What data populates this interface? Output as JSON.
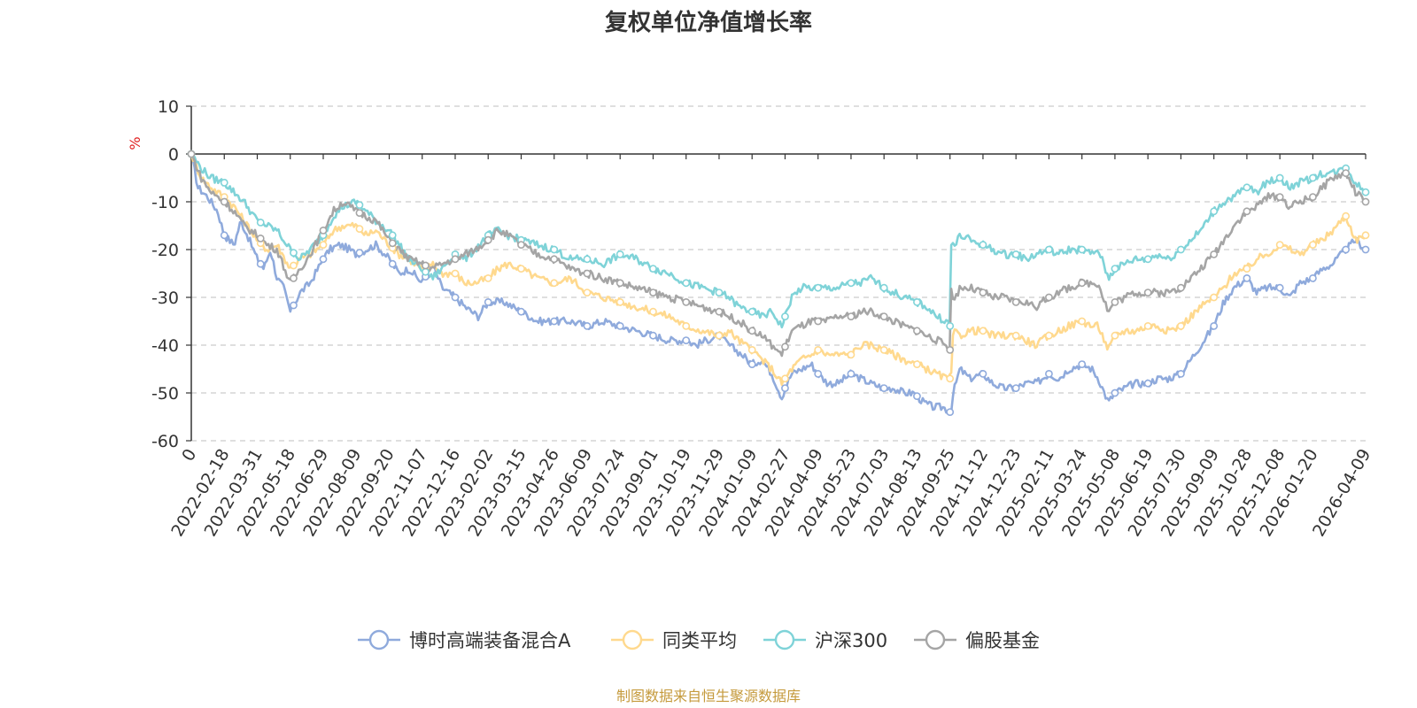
{
  "chart_data": {
    "type": "line",
    "title": "复权单位净值增长率",
    "ylabel": "%",
    "ylim": [
      -60,
      10
    ],
    "yticks": [
      10,
      0,
      -10,
      -20,
      -30,
      -40,
      -50,
      -60
    ],
    "grid": true,
    "legend_position": "bottom",
    "x_tick_labels": [
      "0",
      "2022-02-18",
      "2022-03-31",
      "2022-05-18",
      "2022-06-29",
      "2022-08-09",
      "2022-09-20",
      "2022-11-07",
      "2022-12-16",
      "2023-02-02",
      "2023-03-15",
      "2023-04-26",
      "2023-06-09",
      "2023-07-24",
      "2023-09-01",
      "2023-10-19",
      "2023-11-29",
      "2024-01-09",
      "2024-02-27",
      "2024-04-09",
      "2024-05-23",
      "2024-07-03",
      "2024-08-13",
      "2024-09-25",
      "2024-11-12",
      "2024-12-23",
      "2025-02-11",
      "2025-03-24",
      "2025-05-08",
      "2025-06-19",
      "2025-07-30",
      "2025-09-09",
      "2025-10-28",
      "2025-12-08",
      "2026-01-20",
      "2026-04-09"
    ],
    "x_tick_positions": [
      0,
      1,
      2,
      3,
      4,
      5,
      6,
      7,
      8,
      9,
      10,
      11,
      12,
      13,
      14,
      15,
      16,
      17,
      18,
      19,
      20,
      21,
      22,
      23,
      24,
      25,
      26,
      27,
      28,
      29,
      30,
      31,
      32,
      33,
      34,
      35.6
    ],
    "x_max": 35.6,
    "series": [
      {
        "name": "博时高端装备混合A",
        "color": "#8FAADC",
        "x": [
          0,
          0.2,
          0.5,
          0.8,
          1.0,
          1.3,
          1.5,
          1.7,
          2.0,
          2.2,
          2.4,
          2.6,
          2.8,
          3.0,
          3.3,
          3.6,
          4.0,
          4.2,
          4.5,
          4.8,
          5.0,
          5.3,
          5.6,
          6.0,
          6.3,
          6.6,
          7.0,
          7.3,
          7.6,
          8.0,
          8.3,
          8.5,
          8.7,
          9.0,
          9.5,
          10.0,
          10.5,
          11.0,
          11.5,
          12.0,
          12.5,
          13.0,
          13.5,
          14.0,
          14.5,
          15.0,
          15.3,
          15.6,
          16.0,
          16.3,
          16.7,
          17.0,
          17.3,
          17.6,
          17.9,
          18.0,
          18.2,
          18.5,
          18.8,
          19.0,
          19.3,
          19.6,
          20.0,
          20.3,
          20.6,
          21.0,
          21.3,
          21.6,
          21.9,
          22.2,
          22.5,
          22.8,
          23.0,
          23.05,
          23.1,
          23.3,
          23.6,
          24.0,
          24.3,
          24.6,
          25.0,
          25.3,
          25.6,
          26.0,
          26.3,
          26.6,
          27.0,
          27.3,
          27.5,
          27.8,
          28.0,
          28.3,
          28.6,
          29.0,
          29.3,
          29.6,
          30.0,
          30.3,
          30.6,
          31.0,
          31.3,
          31.6,
          32.0,
          32.3,
          32.6,
          33.0,
          33.3,
          33.6,
          34.0,
          34.3,
          34.6,
          35.0,
          35.3,
          35.6
        ],
        "values": [
          0,
          -7,
          -9,
          -12,
          -17,
          -19,
          -14,
          -17,
          -22,
          -24,
          -20,
          -26,
          -28,
          -33,
          -29,
          -27,
          -22,
          -20,
          -19,
          -20,
          -21,
          -20,
          -19,
          -22,
          -25,
          -24,
          -27,
          -23,
          -28,
          -30,
          -32,
          -33,
          -34,
          -31,
          -31,
          -33,
          -35,
          -35,
          -35,
          -36,
          -35,
          -36,
          -37,
          -38,
          -39,
          -39,
          -40,
          -39,
          -38,
          -40,
          -42,
          -44,
          -43,
          -46,
          -51,
          -49,
          -46,
          -45,
          -44,
          -46,
          -48,
          -48,
          -46,
          -47,
          -48,
          -49,
          -49,
          -50,
          -50,
          -52,
          -53,
          -53,
          -54,
          -53,
          -50,
          -45,
          -47,
          -46,
          -48,
          -49,
          -49,
          -48,
          -48,
          -46,
          -47,
          -45,
          -44,
          -45,
          -47,
          -52,
          -50,
          -49,
          -48,
          -48,
          -47,
          -47,
          -46,
          -43,
          -40,
          -36,
          -31,
          -28,
          -26,
          -29,
          -28,
          -28,
          -30,
          -27,
          -26,
          -24,
          -23,
          -20,
          -18,
          -20
        ],
        "markers": [
          0,
          1.0,
          2.1,
          3.1,
          4.0,
          5.1,
          6.1,
          7.1,
          8.0,
          9.0,
          10.0,
          11.0,
          12.0,
          13.0,
          14.0,
          15.0,
          16.0,
          17.0,
          18.0,
          19.0,
          20.0,
          21.0,
          22.0,
          23.0,
          24.0,
          25.0,
          26.0,
          27.0,
          28.0,
          29.0,
          30.0,
          31.0,
          32.0,
          33.0,
          34.0,
          35.0,
          35.6
        ]
      },
      {
        "name": "同类平均",
        "color": "#FFD98E",
        "x": [
          0,
          0.3,
          0.6,
          1.0,
          1.3,
          1.6,
          2.0,
          2.3,
          2.6,
          3.0,
          3.3,
          3.6,
          4.0,
          4.3,
          4.6,
          5.0,
          5.3,
          5.6,
          6.0,
          6.3,
          6.6,
          7.0,
          7.3,
          7.6,
          8.0,
          8.3,
          8.6,
          9.0,
          9.3,
          9.6,
          10.0,
          10.5,
          11.0,
          11.5,
          12.0,
          12.5,
          13.0,
          13.5,
          14.0,
          14.5,
          15.0,
          15.5,
          16.0,
          16.3,
          16.6,
          17.0,
          17.3,
          17.6,
          17.9,
          18.2,
          18.5,
          18.8,
          19.0,
          19.3,
          19.6,
          20.0,
          20.3,
          20.6,
          21.0,
          21.3,
          21.6,
          22.0,
          22.3,
          22.6,
          22.9,
          23.0,
          23.05,
          23.1,
          23.3,
          23.6,
          24.0,
          24.3,
          24.6,
          25.0,
          25.3,
          25.6,
          26.0,
          26.3,
          26.6,
          27.0,
          27.3,
          27.5,
          27.8,
          28.0,
          28.3,
          28.6,
          29.0,
          29.3,
          29.6,
          30.0,
          30.3,
          30.6,
          31.0,
          31.3,
          31.6,
          32.0,
          32.3,
          32.6,
          33.0,
          33.3,
          33.6,
          34.0,
          34.3,
          34.6,
          35.0,
          35.3,
          35.6
        ],
        "values": [
          0,
          -5,
          -7,
          -9,
          -11,
          -14,
          -18,
          -20,
          -19,
          -24,
          -22,
          -21,
          -19,
          -16,
          -15,
          -15,
          -17,
          -16,
          -19,
          -21,
          -22,
          -24,
          -23,
          -25,
          -25,
          -27,
          -27,
          -26,
          -24,
          -23,
          -24,
          -26,
          -27,
          -26,
          -29,
          -30,
          -31,
          -32,
          -33,
          -34,
          -36,
          -37,
          -38,
          -37,
          -39,
          -41,
          -43,
          -45,
          -48,
          -45,
          -43,
          -42,
          -41,
          -42,
          -42,
          -42,
          -40,
          -40,
          -41,
          -42,
          -43,
          -44,
          -45,
          -46,
          -47,
          -47,
          -45,
          -37,
          -38,
          -37,
          -37,
          -38,
          -38,
          -38,
          -39,
          -40,
          -38,
          -37,
          -36,
          -35,
          -36,
          -36,
          -41,
          -38,
          -37,
          -37,
          -36,
          -36,
          -37,
          -36,
          -34,
          -32,
          -30,
          -28,
          -25,
          -24,
          -22,
          -21,
          -19,
          -20,
          -21,
          -19,
          -18,
          -16,
          -13,
          -18,
          -17
        ],
        "markers": [
          0,
          1.0,
          2.1,
          3.1,
          4.0,
          5.1,
          6.1,
          7.1,
          8.0,
          9.0,
          10.0,
          11.0,
          12.0,
          13.0,
          14.0,
          15.0,
          16.0,
          17.0,
          18.0,
          19.0,
          20.0,
          21.0,
          22.0,
          23.0,
          24.0,
          25.0,
          26.0,
          27.0,
          28.0,
          29.0,
          30.0,
          31.0,
          32.0,
          33.0,
          34.0,
          35.0,
          35.6
        ]
      },
      {
        "name": "沪深300",
        "color": "#7FD3D8",
        "x": [
          0,
          0.3,
          0.6,
          1.0,
          1.3,
          1.6,
          2.0,
          2.3,
          2.6,
          3.0,
          3.3,
          3.6,
          4.0,
          4.3,
          4.6,
          5.0,
          5.3,
          5.6,
          6.0,
          6.3,
          6.6,
          7.0,
          7.3,
          7.6,
          8.0,
          8.3,
          8.6,
          9.0,
          9.3,
          9.6,
          10.0,
          10.5,
          11.0,
          11.5,
          12.0,
          12.5,
          13.0,
          13.5,
          14.0,
          14.5,
          15.0,
          15.5,
          16.0,
          16.3,
          16.6,
          17.0,
          17.3,
          17.6,
          17.9,
          18.2,
          18.5,
          18.8,
          19.0,
          19.3,
          19.6,
          20.0,
          20.3,
          20.6,
          21.0,
          21.3,
          21.6,
          22.0,
          22.3,
          22.6,
          22.9,
          23.0,
          23.05,
          23.1,
          23.3,
          23.6,
          24.0,
          24.3,
          24.6,
          25.0,
          25.3,
          25.6,
          26.0,
          26.3,
          26.6,
          27.0,
          27.3,
          27.5,
          27.8,
          28.0,
          28.3,
          28.6,
          29.0,
          29.3,
          29.6,
          30.0,
          30.3,
          30.6,
          31.0,
          31.3,
          31.6,
          32.0,
          32.3,
          32.6,
          33.0,
          33.3,
          33.6,
          34.0,
          34.3,
          34.6,
          35.0,
          35.3,
          35.6
        ],
        "values": [
          0,
          -3,
          -5,
          -6,
          -8,
          -10,
          -14,
          -15,
          -16,
          -20,
          -22,
          -20,
          -17,
          -13,
          -11,
          -10,
          -12,
          -14,
          -16,
          -19,
          -22,
          -24,
          -26,
          -24,
          -21,
          -22,
          -20,
          -17,
          -16,
          -17,
          -18,
          -19,
          -20,
          -22,
          -22,
          -23,
          -21,
          -22,
          -24,
          -25,
          -27,
          -28,
          -29,
          -30,
          -32,
          -33,
          -34,
          -33,
          -36,
          -30,
          -28,
          -28,
          -28,
          -28,
          -28,
          -27,
          -27,
          -26,
          -28,
          -29,
          -30,
          -31,
          -32,
          -34,
          -35,
          -36,
          -14,
          -20,
          -17,
          -18,
          -19,
          -20,
          -21,
          -21,
          -22,
          -21,
          -20,
          -21,
          -20,
          -20,
          -21,
          -20,
          -26,
          -24,
          -23,
          -22,
          -22,
          -21,
          -22,
          -20,
          -18,
          -16,
          -12,
          -10,
          -9,
          -7,
          -8,
          -6,
          -5,
          -7,
          -6,
          -5,
          -4,
          -4,
          -3,
          -6,
          -8
        ],
        "markers": [
          0,
          1.0,
          2.1,
          3.1,
          4.0,
          5.1,
          6.1,
          7.1,
          8.0,
          9.0,
          10.0,
          11.0,
          12.0,
          13.0,
          14.0,
          15.0,
          16.0,
          17.0,
          18.0,
          19.0,
          20.0,
          21.0,
          22.0,
          23.0,
          24.0,
          25.0,
          26.0,
          27.0,
          28.0,
          29.0,
          30.0,
          31.0,
          32.0,
          33.0,
          34.0,
          35.0,
          35.6
        ]
      },
      {
        "name": "偏股基金",
        "color": "#A5A5A5",
        "x": [
          0,
          0.3,
          0.6,
          1.0,
          1.3,
          1.6,
          2.0,
          2.3,
          2.6,
          3.0,
          3.3,
          3.6,
          4.0,
          4.3,
          4.6,
          5.0,
          5.3,
          5.6,
          6.0,
          6.3,
          6.6,
          7.0,
          7.3,
          7.6,
          8.0,
          8.3,
          8.6,
          9.0,
          9.3,
          9.6,
          10.0,
          10.5,
          11.0,
          11.5,
          12.0,
          12.5,
          13.0,
          13.5,
          14.0,
          14.5,
          15.0,
          15.5,
          16.0,
          16.3,
          16.6,
          17.0,
          17.3,
          17.6,
          17.9,
          18.2,
          18.5,
          18.8,
          19.0,
          19.3,
          19.6,
          20.0,
          20.3,
          20.6,
          21.0,
          21.3,
          21.6,
          22.0,
          22.3,
          22.6,
          22.9,
          23.0,
          23.05,
          23.1,
          23.3,
          23.6,
          24.0,
          24.3,
          24.6,
          25.0,
          25.3,
          25.6,
          26.0,
          26.3,
          26.6,
          27.0,
          27.3,
          27.5,
          27.8,
          28.0,
          28.3,
          28.6,
          29.0,
          29.3,
          29.6,
          30.0,
          30.3,
          30.6,
          31.0,
          31.3,
          31.6,
          32.0,
          32.3,
          32.6,
          33.0,
          33.3,
          33.6,
          34.0,
          34.3,
          34.6,
          35.0,
          35.3,
          35.6
        ],
        "values": [
          0,
          -5,
          -8,
          -10,
          -12,
          -15,
          -17,
          -19,
          -20,
          -27,
          -24,
          -21,
          -16,
          -12,
          -10,
          -12,
          -13,
          -14,
          -18,
          -20,
          -22,
          -23,
          -24,
          -23,
          -22,
          -21,
          -20,
          -18,
          -16,
          -17,
          -19,
          -21,
          -22,
          -24,
          -25,
          -26,
          -27,
          -28,
          -29,
          -30,
          -31,
          -32,
          -33,
          -34,
          -35,
          -37,
          -38,
          -40,
          -42,
          -37,
          -36,
          -35,
          -35,
          -35,
          -34,
          -34,
          -33,
          -33,
          -34,
          -35,
          -36,
          -37,
          -38,
          -39,
          -40,
          -41,
          -25,
          -31,
          -28,
          -28,
          -29,
          -30,
          -30,
          -31,
          -31,
          -32,
          -30,
          -29,
          -28,
          -27,
          -27,
          -27,
          -33,
          -31,
          -30,
          -29,
          -29,
          -29,
          -29,
          -28,
          -26,
          -24,
          -21,
          -18,
          -15,
          -12,
          -11,
          -9,
          -9,
          -11,
          -10,
          -9,
          -7,
          -5,
          -4,
          -8,
          -10
        ],
        "markers": [
          0,
          1.0,
          2.1,
          3.1,
          4.0,
          5.1,
          6.1,
          7.1,
          8.0,
          9.0,
          10.0,
          11.0,
          12.0,
          13.0,
          14.0,
          15.0,
          16.0,
          17.0,
          18.0,
          19.0,
          20.0,
          21.0,
          22.0,
          23.0,
          24.0,
          25.0,
          26.0,
          27.0,
          28.0,
          29.0,
          30.0,
          31.0,
          32.0,
          33.0,
          34.0,
          35.0,
          35.6
        ]
      }
    ]
  },
  "source": {
    "text": "制图数据来自恒生聚源数据库",
    "color": "#C59A3C"
  },
  "unit_color": "#E02020"
}
